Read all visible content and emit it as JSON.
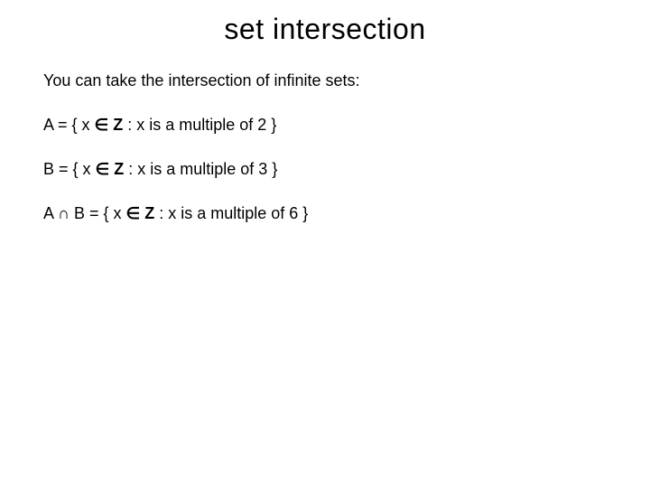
{
  "title": "set intersection",
  "intro": "You can take the intersection of infinite sets:",
  "lineA": {
    "pre": "A = { x ",
    "in": "∈",
    "Z": "Z",
    "post": " : x is a multiple of 2 }"
  },
  "lineB": {
    "pre": "B = { x ",
    "in": "∈",
    "Z": "Z",
    "post": " : x is a multiple of 3 }"
  },
  "lineAB": {
    "pre": "A ∩ B = { x ",
    "in": "∈",
    "Z": "Z",
    "post": " : x is a multiple of 6 }"
  },
  "colors": {
    "text": "#000000",
    "background": "#ffffff"
  },
  "font": {
    "family": "Comic Sans MS",
    "title_size": 32,
    "body_size": 18
  }
}
